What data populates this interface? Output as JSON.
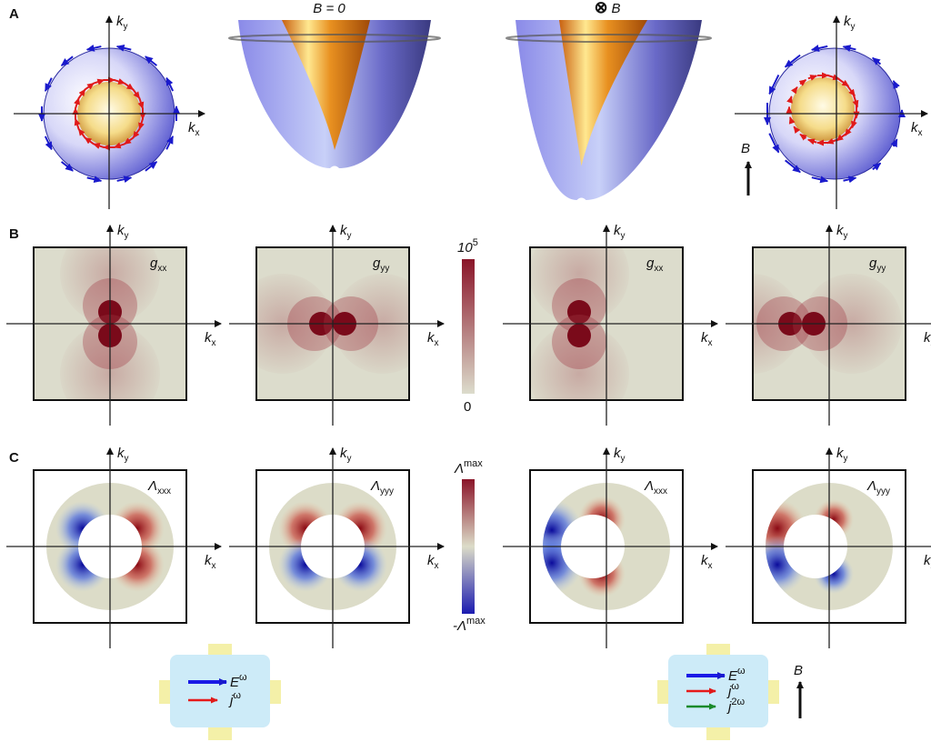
{
  "panel_labels": [
    "A",
    "B",
    "C"
  ],
  "axes": {
    "kx": {
      "base": "k",
      "sub": "x"
    },
    "ky": {
      "base": "k",
      "sub": "y"
    }
  },
  "panel_a": {
    "left_title": "B = 0",
    "right_title": {
      "symbol": "⊗",
      "text": "B"
    },
    "field_label": "B"
  },
  "panel_b": {
    "plots": [
      {
        "base": "g",
        "sub": "xx"
      },
      {
        "base": "g",
        "sub": "yy"
      },
      {
        "base": "g",
        "sub": "xx"
      },
      {
        "base": "g",
        "sub": "yy"
      }
    ],
    "colorbar": {
      "max": {
        "base": "10",
        "sup": "5"
      },
      "min": "0"
    }
  },
  "panel_c": {
    "plots": [
      {
        "base": "Λ",
        "sub": "xxx"
      },
      {
        "base": "Λ",
        "sub": "yyy"
      },
      {
        "base": "Λ",
        "sub": "xxx"
      },
      {
        "base": "Λ",
        "sub": "yyy"
      }
    ],
    "colorbar": {
      "max": {
        "base": "Λ",
        "sup": "max"
      },
      "min": {
        "base": "-Λ",
        "sup": "max"
      }
    }
  },
  "devices": [
    {
      "lines": [
        {
          "base": "E",
          "sup": "ω",
          "color": "#1a1ae6"
        },
        {
          "base": "j",
          "sup": "ω",
          "color": "#e61a1a"
        }
      ]
    },
    {
      "lines": [
        {
          "base": "E",
          "sup": "ω",
          "color": "#1a1ae6"
        },
        {
          "base": "j",
          "sup": "ω",
          "color": "#e61a1a"
        },
        {
          "base": "j",
          "sup": "2ω",
          "color": "#1a8a2a"
        }
      ],
      "field_label": "B"
    }
  ]
}
